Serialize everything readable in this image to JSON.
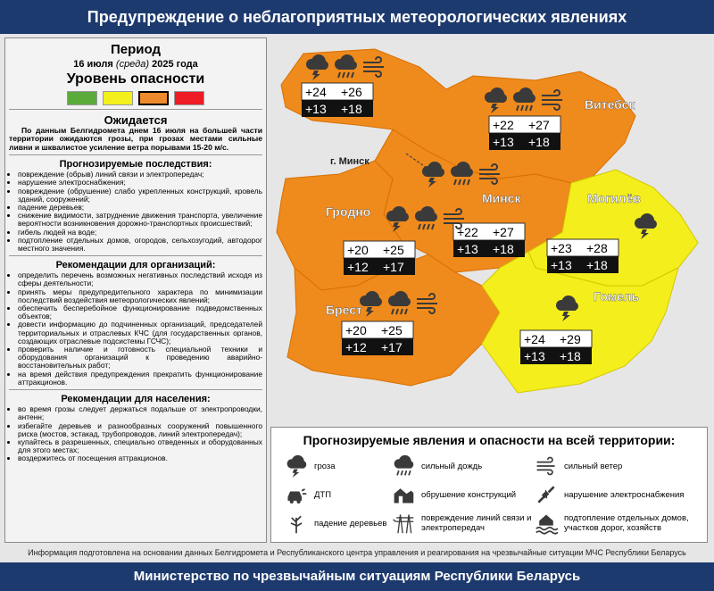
{
  "header": {
    "title": "Предупреждение о неблагоприятных метеорологических явлениях"
  },
  "panel": {
    "period_label": "Период",
    "date_parts": [
      "16 июля",
      "(среда)",
      "2025 года"
    ],
    "level_label": "Уровень опасности",
    "level": {
      "colors": [
        "#5aab3c",
        "#f2ef1c",
        "#ef8a2c",
        "#ee1c24"
      ],
      "active": 2
    },
    "expected_heading": "Ожидается",
    "expected_text": "По данным Белгидромета днем 16 июля на большей части территории ожидаются грозы, при грозах местами сильные ливни и шквалистое усиление ветра порывами 15-20 м/с.",
    "sections": [
      {
        "heading": "Прогнозируемые последствия:",
        "items": [
          "повреждение (обрыв) линий связи и электропередач;",
          "нарушение электроснабжения;",
          "повреждение (обрушение) слабо укрепленных конструкций, кровель зданий, сооружений;",
          "падение деревьев;",
          "снижение видимости, затруднение движения транспорта, увеличение вероятности возникновения дорожно-транспортных происшествий;",
          "гибель людей на воде;",
          "подтопление отдельных домов, огородов, сельхозугодий, автодорог местного значения."
        ]
      },
      {
        "heading": "Рекомендации для организаций:",
        "items": [
          "определить перечень возможных негативных последствий исходя из сферы деятельности;",
          "принять меры предупредительного характера по минимизации последствий воздействия метеорологических явлений;",
          "обеспечить бесперебойное функционирование подведомственных объектов;",
          "довести информацию до подчиненных организаций, председателей территориальных и отраслевых КЧС (для государственных органов, создающих отраслевые подсистемы ГСЧС);",
          "проверить наличие и готовность специальной техники и оборудования организаций к проведению аварийно-восстановительных работ;",
          "на время действия предупреждения прекратить функционирование аттракционов."
        ]
      },
      {
        "heading": "Рекомендации для населения:",
        "items": [
          "во время грозы следует держаться подальше от электропроводки, антенн;",
          "избегайте деревьев и разнообразных сооружений повышенного риска (мостов, эстакад, трубопроводов, линий электропередач);",
          "купайтесь в разрешенных, специально отведенных и оборудованных для этого местах;",
          "воздержитесь от посещения аттракционов."
        ]
      }
    ]
  },
  "map": {
    "cities": [
      "Витебск",
      "г. Минск",
      "Минск",
      "Могилёв",
      "Гродно",
      "Брест",
      "Гомель"
    ],
    "regions": [
      {
        "day": [
          "+24",
          "+26"
        ],
        "night": [
          "+13",
          "+18"
        ]
      },
      {
        "day": [
          "+22",
          "+27"
        ],
        "night": [
          "+13",
          "+18"
        ]
      },
      {
        "day": [
          "+22",
          "+27"
        ],
        "night": [
          "+13",
          "+18"
        ]
      },
      {
        "day": [
          "+20",
          "+25"
        ],
        "night": [
          "+12",
          "+17"
        ]
      },
      {
        "day": [
          "+23",
          "+28"
        ],
        "night": [
          "+13",
          "+18"
        ]
      },
      {
        "day": [
          "+20",
          "+25"
        ],
        "night": [
          "+12",
          "+17"
        ]
      },
      {
        "day": [
          "+24",
          "+29"
        ],
        "night": [
          "+13",
          "+18"
        ]
      }
    ]
  },
  "legend": {
    "title": "Прогнозируемые явления и опасности на всей территории:",
    "items": [
      "гроза",
      "сильный дождь",
      "сильный ветер",
      "ДТП",
      "обрушение конструкций",
      "нарушение электроснабжения",
      "падение деревьев",
      "повреждение линий связи и электропередач",
      "подтопление отдельных домов, участков дорог, хозяйств"
    ]
  },
  "footer": {
    "note": "Информация подготовлена на основании данных Белгидромета и Республиканского центра управления и реагирования на чрезвычайные ситуации МЧС Республики Беларусь",
    "ministry": "Министерство по чрезвычайным ситуациям Республики Беларусь"
  }
}
